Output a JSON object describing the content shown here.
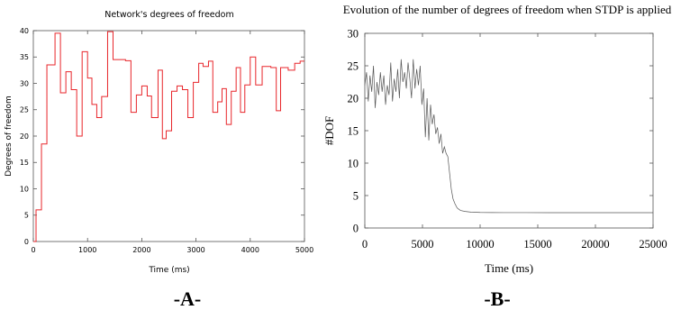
{
  "chart_data": [
    {
      "type": "line",
      "step": true,
      "title": "Network's degrees of freedom",
      "xlabel": "Time (ms)",
      "ylabel": "Degrees of freedom",
      "xlim": [
        0,
        5000
      ],
      "ylim": [
        0,
        40
      ],
      "xticks": [
        0,
        1000,
        2000,
        3000,
        4000,
        5000
      ],
      "yticks": [
        0,
        5,
        10,
        15,
        20,
        25,
        30,
        35,
        40
      ],
      "color": "#e8262b",
      "grid": false,
      "panel_label": "-A-",
      "series": [
        {
          "x": [
            0,
            50,
            150,
            250,
            400,
            500,
            600,
            700,
            800,
            900,
            1000,
            1080,
            1170,
            1260,
            1370,
            1470,
            1700,
            1800,
            1900,
            2000,
            2100,
            2180,
            2300,
            2380,
            2450,
            2550,
            2650,
            2750,
            2850,
            2950,
            3050,
            3130,
            3230,
            3310,
            3400,
            3480,
            3560,
            3650,
            3740,
            3820,
            3900,
            4000,
            4100,
            4220,
            4380,
            4480,
            4560,
            4700,
            4820,
            4920,
            5000
          ],
          "y": [
            0,
            6,
            18.5,
            33.5,
            39.5,
            28.2,
            32.2,
            28.8,
            20,
            36,
            31,
            26,
            23.5,
            27.5,
            39.8,
            34.5,
            34.3,
            24.5,
            27.8,
            29.5,
            27.6,
            23.5,
            32.5,
            19.5,
            21,
            28.5,
            29.5,
            28.8,
            23.5,
            30.2,
            33.8,
            33.2,
            34.2,
            24.5,
            26.5,
            29,
            22.2,
            28.5,
            33,
            24.5,
            29.7,
            35,
            29.7,
            33.2,
            33,
            24.8,
            33,
            32.5,
            33.8,
            34.2,
            34.2
          ]
        }
      ]
    },
    {
      "type": "line",
      "title": "Evolution of the number of degrees of freedom when STDP is applied",
      "xlabel": "Time (ms)",
      "ylabel": "#DOF",
      "xlim": [
        0,
        25000
      ],
      "ylim": [
        0,
        30
      ],
      "xticks": [
        0,
        5000,
        10000,
        15000,
        20000,
        25000
      ],
      "yticks": [
        0,
        5,
        10,
        15,
        20,
        25,
        30
      ],
      "color": "#555555",
      "grid": false,
      "panel_label": "-B-",
      "series": [
        {
          "x": [
            0,
            150,
            300,
            450,
            600,
            750,
            900,
            1050,
            1200,
            1350,
            1500,
            1650,
            1800,
            1950,
            2100,
            2250,
            2400,
            2550,
            2700,
            2850,
            3000,
            3150,
            3300,
            3450,
            3600,
            3750,
            3900,
            4050,
            4200,
            4350,
            4500,
            4650,
            4800,
            4950,
            5100,
            5250,
            5400,
            5550,
            5700,
            5850,
            6000,
            6150,
            6300,
            6450,
            6600,
            6750,
            6900,
            7050,
            7200,
            7350,
            7500,
            7650,
            7800,
            8000,
            8300,
            8700,
            9200,
            10000,
            11000,
            12000,
            14000,
            16000,
            18000,
            20000,
            22000,
            24000,
            25000
          ],
          "y": [
            22,
            24,
            19.5,
            23.5,
            21,
            25,
            18.5,
            22.5,
            20.5,
            24,
            21,
            23.5,
            19,
            22,
            20.5,
            25.5,
            19.5,
            23,
            21,
            24.5,
            20,
            26,
            22.5,
            24,
            21.5,
            25.5,
            23,
            20,
            26,
            21.5,
            24.5,
            22,
            25,
            19,
            21.5,
            14,
            20,
            13.5,
            19,
            16,
            17.5,
            14.5,
            15.5,
            13,
            14.5,
            11.5,
            12.5,
            11.5,
            11,
            8.5,
            6,
            4.5,
            3.8,
            3.1,
            2.7,
            2.55,
            2.45,
            2.4,
            2.38,
            2.37,
            2.37,
            2.36,
            2.36,
            2.36,
            2.36,
            2.36,
            2.36
          ]
        }
      ]
    }
  ]
}
